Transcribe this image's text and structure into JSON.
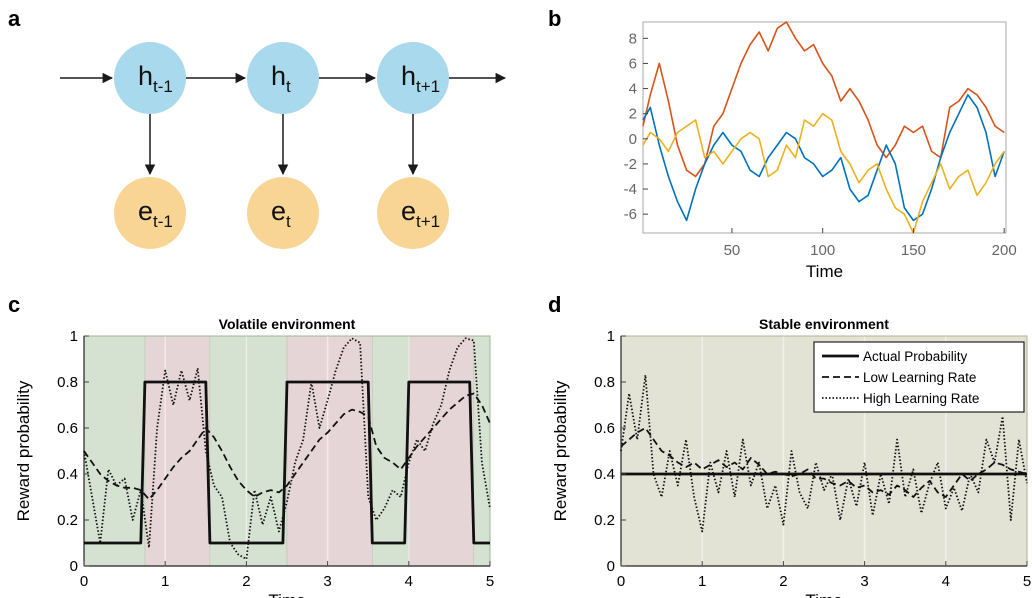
{
  "panel_letters": {
    "a": "a",
    "b": "b",
    "c": "c",
    "d": "d"
  },
  "panel_a": {
    "hidden_nodes": [
      {
        "base": "h",
        "sub": "t-1"
      },
      {
        "base": "h",
        "sub": "t"
      },
      {
        "base": "h",
        "sub": "t+1"
      }
    ],
    "evidence_nodes": [
      {
        "base": "e",
        "sub": "t-1"
      },
      {
        "base": "e",
        "sub": "t"
      },
      {
        "base": "e",
        "sub": "t+1"
      }
    ],
    "colors": {
      "hidden": "#a9d9ec",
      "evidence": "#f8d594",
      "arrow": "#1a1a1a"
    }
  },
  "chart_data": [
    {
      "id": "b",
      "type": "line",
      "title": "",
      "xlabel": "Time",
      "ylabel": "",
      "xlim": [
        1,
        201
      ],
      "ylim": [
        -7.5,
        9.3
      ],
      "xticks": [
        50,
        100,
        150,
        200
      ],
      "yticks": [
        -6,
        -4,
        -2,
        0,
        2,
        4,
        6,
        8
      ],
      "series": [
        {
          "color": "#d95319",
          "x": [
            1,
            5,
            10,
            15,
            20,
            25,
            30,
            35,
            40,
            45,
            50,
            55,
            60,
            65,
            70,
            75,
            80,
            85,
            90,
            95,
            100,
            105,
            110,
            115,
            120,
            125,
            130,
            135,
            140,
            145,
            150,
            155,
            160,
            165,
            170,
            175,
            180,
            185,
            190,
            195,
            200
          ],
          "values": [
            1.0,
            3.5,
            6.0,
            3.0,
            -0.5,
            -2.5,
            -3.0,
            -2.0,
            1.0,
            2.0,
            4.0,
            6.0,
            7.5,
            8.5,
            7.0,
            8.8,
            9.3,
            8.0,
            7.0,
            7.5,
            6.0,
            5.0,
            3.0,
            4.0,
            3.0,
            1.5,
            -0.5,
            -1.5,
            -0.5,
            1.0,
            0.5,
            1.0,
            -1.0,
            -1.5,
            2.5,
            3.0,
            4.0,
            3.5,
            2.5,
            1.0,
            0.5
          ]
        },
        {
          "color": "#0072bd",
          "x": [
            1,
            5,
            10,
            15,
            20,
            25,
            30,
            35,
            40,
            45,
            50,
            55,
            60,
            65,
            70,
            75,
            80,
            85,
            90,
            95,
            100,
            105,
            110,
            115,
            120,
            125,
            130,
            135,
            140,
            145,
            150,
            155,
            160,
            165,
            170,
            175,
            180,
            185,
            190,
            195,
            200
          ],
          "values": [
            1.5,
            2.5,
            -0.5,
            -3.0,
            -5.0,
            -6.5,
            -4.0,
            -2.0,
            -0.5,
            0.5,
            -0.5,
            -1.0,
            -2.5,
            -3.0,
            -1.5,
            -0.5,
            0.5,
            0.0,
            -1.5,
            -2.0,
            -3.0,
            -2.5,
            -1.5,
            -4.0,
            -5.0,
            -4.5,
            -2.5,
            -0.5,
            -2.0,
            -5.5,
            -6.5,
            -6.0,
            -4.0,
            -1.5,
            0.5,
            2.0,
            3.5,
            2.5,
            0.5,
            -3.0,
            -1.0
          ]
        },
        {
          "color": "#edb120",
          "x": [
            1,
            5,
            10,
            15,
            20,
            25,
            30,
            35,
            40,
            45,
            50,
            55,
            60,
            65,
            70,
            75,
            80,
            85,
            90,
            95,
            100,
            105,
            110,
            115,
            120,
            125,
            130,
            135,
            140,
            145,
            150,
            155,
            160,
            165,
            170,
            175,
            180,
            185,
            190,
            195,
            200
          ],
          "values": [
            -0.5,
            0.5,
            0.0,
            -1.0,
            0.5,
            1.0,
            1.5,
            -1.5,
            -1.0,
            -2.0,
            -1.0,
            0.0,
            0.5,
            0.0,
            -3.0,
            -2.5,
            -0.5,
            -1.5,
            1.5,
            1.0,
            2.0,
            1.5,
            -1.0,
            -2.0,
            -3.5,
            -2.5,
            -2.0,
            -4.0,
            -5.5,
            -6.0,
            -7.5,
            -5.0,
            -3.5,
            -2.0,
            -4.0,
            -3.0,
            -2.5,
            -4.5,
            -3.5,
            -2.0,
            -1.0
          ]
        }
      ]
    },
    {
      "id": "c",
      "type": "line",
      "title": "Volatile environment",
      "xlabel": "Time",
      "ylabel": "Reward probability",
      "xlim": [
        0,
        5
      ],
      "ylim": [
        0,
        1
      ],
      "xticks": [
        0,
        1,
        2,
        3,
        4,
        5
      ],
      "yticks": [
        0,
        0.2,
        0.4,
        0.6,
        0.8,
        1
      ],
      "background_bands": [
        {
          "x0": 0,
          "x1": 0.75,
          "color": "#d5e1d1"
        },
        {
          "x0": 0.75,
          "x1": 1.55,
          "color": "#e6d5d6"
        },
        {
          "x0": 1.55,
          "x1": 2.5,
          "color": "#d5e1d1"
        },
        {
          "x0": 2.5,
          "x1": 3.55,
          "color": "#e6d5d6"
        },
        {
          "x0": 3.55,
          "x1": 4.0,
          "color": "#d5e1d1"
        },
        {
          "x0": 4.0,
          "x1": 4.8,
          "color": "#e6d5d6"
        },
        {
          "x0": 4.8,
          "x1": 5.0,
          "color": "#d5e1d1"
        }
      ],
      "series": [
        {
          "style": "solid",
          "x": [
            0,
            0.7,
            0.75,
            1.5,
            1.55,
            2.45,
            2.5,
            3.5,
            3.55,
            3.95,
            4.0,
            4.75,
            4.8,
            5.0
          ],
          "values": [
            0.1,
            0.1,
            0.8,
            0.8,
            0.1,
            0.1,
            0.8,
            0.8,
            0.1,
            0.1,
            0.8,
            0.8,
            0.1,
            0.1
          ]
        },
        {
          "style": "dashed",
          "x": [
            0,
            0.1,
            0.2,
            0.3,
            0.4,
            0.5,
            0.6,
            0.7,
            0.8,
            0.9,
            1.0,
            1.1,
            1.2,
            1.3,
            1.4,
            1.5,
            1.6,
            1.7,
            1.8,
            1.9,
            2.0,
            2.1,
            2.2,
            2.3,
            2.4,
            2.5,
            2.6,
            2.7,
            2.8,
            2.9,
            3.0,
            3.1,
            3.2,
            3.3,
            3.4,
            3.5,
            3.6,
            3.7,
            3.8,
            3.9,
            4.0,
            4.1,
            4.2,
            4.3,
            4.4,
            4.5,
            4.6,
            4.7,
            4.8,
            4.9,
            5.0
          ],
          "values": [
            0.5,
            0.45,
            0.4,
            0.37,
            0.35,
            0.34,
            0.34,
            0.33,
            0.29,
            0.33,
            0.38,
            0.43,
            0.47,
            0.5,
            0.55,
            0.6,
            0.56,
            0.5,
            0.43,
            0.37,
            0.33,
            0.3,
            0.32,
            0.33,
            0.32,
            0.35,
            0.4,
            0.45,
            0.5,
            0.55,
            0.58,
            0.62,
            0.66,
            0.68,
            0.67,
            0.65,
            0.52,
            0.47,
            0.45,
            0.42,
            0.47,
            0.52,
            0.56,
            0.6,
            0.64,
            0.68,
            0.71,
            0.74,
            0.75,
            0.7,
            0.62
          ]
        },
        {
          "style": "dotted",
          "x": [
            0,
            0.1,
            0.2,
            0.3,
            0.4,
            0.5,
            0.6,
            0.7,
            0.8,
            0.9,
            1.0,
            1.1,
            1.2,
            1.3,
            1.4,
            1.5,
            1.6,
            1.7,
            1.8,
            1.9,
            2.0,
            2.1,
            2.2,
            2.3,
            2.4,
            2.5,
            2.6,
            2.7,
            2.8,
            2.9,
            3.0,
            3.1,
            3.2,
            3.3,
            3.4,
            3.5,
            3.6,
            3.7,
            3.8,
            3.9,
            4.0,
            4.1,
            4.2,
            4.3,
            4.4,
            4.5,
            4.6,
            4.7,
            4.8,
            4.9,
            5.0
          ],
          "values": [
            0.5,
            0.3,
            0.1,
            0.42,
            0.35,
            0.38,
            0.2,
            0.33,
            0.08,
            0.6,
            0.85,
            0.7,
            0.85,
            0.72,
            0.86,
            0.5,
            0.35,
            0.3,
            0.1,
            0.05,
            0.03,
            0.33,
            0.18,
            0.3,
            0.15,
            0.28,
            0.45,
            0.55,
            0.8,
            0.6,
            0.72,
            0.85,
            0.95,
            0.99,
            0.97,
            0.3,
            0.2,
            0.25,
            0.33,
            0.3,
            0.45,
            0.55,
            0.5,
            0.62,
            0.7,
            0.85,
            0.95,
            0.99,
            0.98,
            0.45,
            0.25
          ]
        }
      ]
    },
    {
      "id": "d",
      "type": "line",
      "title": "Stable environment",
      "xlabel": "Time",
      "ylabel": "Reward probability",
      "xlim": [
        0,
        5
      ],
      "ylim": [
        0,
        1
      ],
      "xticks": [
        0,
        1,
        2,
        3,
        4,
        5
      ],
      "yticks": [
        0,
        0.2,
        0.4,
        0.6,
        0.8,
        1
      ],
      "background_color": "#e3e3d5",
      "legend": {
        "position": "top-right",
        "entries": [
          "Actual Probability",
          "Low Learning Rate",
          "High Learning Rate"
        ]
      },
      "series": [
        {
          "name": "Actual Probability",
          "style": "solid",
          "x": [
            0,
            5
          ],
          "values": [
            0.4,
            0.4
          ]
        },
        {
          "name": "Low Learning Rate",
          "style": "dashed",
          "x": [
            0,
            0.1,
            0.2,
            0.3,
            0.4,
            0.5,
            0.6,
            0.7,
            0.8,
            0.9,
            1.0,
            1.1,
            1.2,
            1.3,
            1.4,
            1.5,
            1.6,
            1.7,
            1.8,
            1.9,
            2.0,
            2.1,
            2.2,
            2.3,
            2.4,
            2.5,
            2.6,
            2.7,
            2.8,
            2.9,
            3.0,
            3.1,
            3.2,
            3.3,
            3.4,
            3.5,
            3.6,
            3.7,
            3.8,
            3.9,
            4.0,
            4.1,
            4.2,
            4.3,
            4.4,
            4.5,
            4.6,
            4.7,
            4.8,
            4.9,
            5.0
          ],
          "values": [
            0.52,
            0.55,
            0.58,
            0.6,
            0.55,
            0.5,
            0.48,
            0.45,
            0.43,
            0.45,
            0.42,
            0.44,
            0.46,
            0.43,
            0.45,
            0.42,
            0.47,
            0.44,
            0.4,
            0.41,
            0.4,
            0.39,
            0.4,
            0.42,
            0.38,
            0.38,
            0.36,
            0.35,
            0.37,
            0.34,
            0.35,
            0.32,
            0.33,
            0.31,
            0.35,
            0.33,
            0.3,
            0.34,
            0.37,
            0.32,
            0.3,
            0.35,
            0.4,
            0.37,
            0.4,
            0.42,
            0.45,
            0.44,
            0.42,
            0.41,
            0.4
          ]
        },
        {
          "name": "High Learning Rate",
          "style": "dotted",
          "x": [
            0,
            0.1,
            0.2,
            0.3,
            0.4,
            0.5,
            0.6,
            0.7,
            0.8,
            0.9,
            1.0,
            1.1,
            1.2,
            1.3,
            1.4,
            1.5,
            1.6,
            1.7,
            1.8,
            1.9,
            2.0,
            2.1,
            2.2,
            2.3,
            2.4,
            2.5,
            2.6,
            2.7,
            2.8,
            2.9,
            3.0,
            3.1,
            3.2,
            3.3,
            3.4,
            3.5,
            3.6,
            3.7,
            3.8,
            3.9,
            4.0,
            4.1,
            4.2,
            4.3,
            4.4,
            4.5,
            4.6,
            4.7,
            4.8,
            4.9,
            5.0
          ],
          "values": [
            0.5,
            0.75,
            0.55,
            0.83,
            0.4,
            0.3,
            0.5,
            0.35,
            0.55,
            0.3,
            0.15,
            0.45,
            0.32,
            0.5,
            0.3,
            0.55,
            0.35,
            0.45,
            0.25,
            0.35,
            0.18,
            0.5,
            0.32,
            0.25,
            0.45,
            0.33,
            0.4,
            0.2,
            0.38,
            0.26,
            0.45,
            0.22,
            0.4,
            0.27,
            0.55,
            0.3,
            0.42,
            0.23,
            0.36,
            0.45,
            0.25,
            0.34,
            0.24,
            0.4,
            0.32,
            0.55,
            0.45,
            0.65,
            0.2,
            0.55,
            0.36
          ]
        }
      ]
    }
  ]
}
